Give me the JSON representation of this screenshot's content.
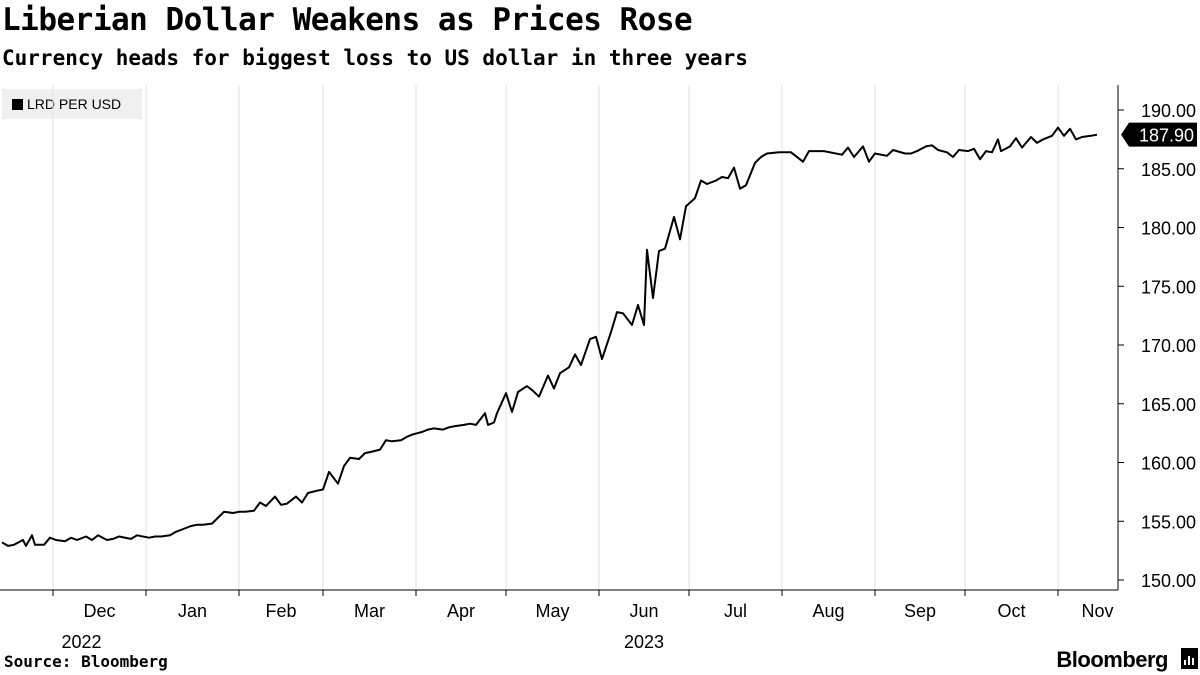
{
  "header": {
    "title": "Liberian Dollar Weakens as Prices Rose",
    "subtitle": "Currency heads for biggest loss to US dollar in three years"
  },
  "footer": {
    "source": "Source: Bloomberg",
    "brand": "Bloomberg"
  },
  "chart_data": {
    "type": "line",
    "legend_position": "top-left",
    "grid": "vertical",
    "ylim": [
      150,
      190
    ],
    "y_axis_side": "right",
    "y_ticks": [
      "150.00",
      "155.00",
      "160.00",
      "165.00",
      "170.00",
      "175.00",
      "180.00",
      "185.00",
      "190.00"
    ],
    "x_ticks": [
      "Dec",
      "Jan",
      "Feb",
      "Mar",
      "Apr",
      "May",
      "Jun",
      "Jul",
      "Aug",
      "Sep",
      "Oct",
      "Nov"
    ],
    "x_years": [
      "2022",
      "2023"
    ],
    "last_value_label": "187.90",
    "series": [
      {
        "name": "LRD PER USD",
        "color": "#000000",
        "points": [
          [
            "2022-11-14",
            153.2
          ],
          [
            "2022-11-16",
            152.9
          ],
          [
            "2022-11-18",
            153.0
          ],
          [
            "2022-11-21",
            153.4
          ],
          [
            "2022-11-22",
            152.9
          ],
          [
            "2022-11-24",
            153.8
          ],
          [
            "2022-11-25",
            153.0
          ],
          [
            "2022-11-28",
            153.0
          ],
          [
            "2022-11-30",
            153.6
          ],
          [
            "2022-12-02",
            153.4
          ],
          [
            "2022-12-05",
            153.3
          ],
          [
            "2022-12-07",
            153.6
          ],
          [
            "2022-12-09",
            153.4
          ],
          [
            "2022-12-12",
            153.7
          ],
          [
            "2022-12-14",
            153.4
          ],
          [
            "2022-12-16",
            153.8
          ],
          [
            "2022-12-19",
            153.4
          ],
          [
            "2022-12-21",
            153.5
          ],
          [
            "2022-12-23",
            153.7
          ],
          [
            "2022-12-27",
            153.5
          ],
          [
            "2022-12-29",
            153.8
          ],
          [
            "2023-01-02",
            153.6
          ],
          [
            "2023-01-04",
            153.7
          ],
          [
            "2023-01-06",
            153.7
          ],
          [
            "2023-01-09",
            153.8
          ],
          [
            "2023-01-11",
            154.1
          ],
          [
            "2023-01-13",
            154.3
          ],
          [
            "2023-01-16",
            154.6
          ],
          [
            "2023-01-18",
            154.7
          ],
          [
            "2023-01-20",
            154.7
          ],
          [
            "2023-01-23",
            154.8
          ],
          [
            "2023-01-25",
            155.3
          ],
          [
            "2023-01-27",
            155.8
          ],
          [
            "2023-01-30",
            155.7
          ],
          [
            "2023-02-01",
            155.8
          ],
          [
            "2023-02-03",
            155.8
          ],
          [
            "2023-02-06",
            155.9
          ],
          [
            "2023-02-08",
            156.6
          ],
          [
            "2023-02-10",
            156.3
          ],
          [
            "2023-02-13",
            157.1
          ],
          [
            "2023-02-15",
            156.4
          ],
          [
            "2023-02-17",
            156.5
          ],
          [
            "2023-02-20",
            157.1
          ],
          [
            "2023-02-22",
            156.6
          ],
          [
            "2023-02-24",
            157.4
          ],
          [
            "2023-02-27",
            157.6
          ],
          [
            "2023-03-01",
            157.7
          ],
          [
            "2023-03-03",
            159.2
          ],
          [
            "2023-03-06",
            158.2
          ],
          [
            "2023-03-08",
            159.7
          ],
          [
            "2023-03-10",
            160.4
          ],
          [
            "2023-03-13",
            160.3
          ],
          [
            "2023-03-15",
            160.8
          ],
          [
            "2023-03-17",
            160.9
          ],
          [
            "2023-03-20",
            161.1
          ],
          [
            "2023-03-22",
            161.9
          ],
          [
            "2023-03-24",
            161.8
          ],
          [
            "2023-03-27",
            161.9
          ],
          [
            "2023-03-29",
            162.2
          ],
          [
            "2023-03-31",
            162.4
          ],
          [
            "2023-04-03",
            162.6
          ],
          [
            "2023-04-05",
            162.8
          ],
          [
            "2023-04-07",
            162.9
          ],
          [
            "2023-04-10",
            162.8
          ],
          [
            "2023-04-12",
            163.0
          ],
          [
            "2023-04-14",
            163.1
          ],
          [
            "2023-04-17",
            163.2
          ],
          [
            "2023-04-19",
            163.3
          ],
          [
            "2023-04-21",
            163.2
          ],
          [
            "2023-04-24",
            164.2
          ],
          [
            "2023-04-25",
            163.2
          ],
          [
            "2023-04-27",
            163.4
          ],
          [
            "2023-04-28",
            164.2
          ],
          [
            "2023-05-01",
            165.9
          ],
          [
            "2023-05-03",
            164.3
          ],
          [
            "2023-05-05",
            166.0
          ],
          [
            "2023-05-08",
            166.5
          ],
          [
            "2023-05-10",
            166.1
          ],
          [
            "2023-05-12",
            165.6
          ],
          [
            "2023-05-15",
            167.4
          ],
          [
            "2023-05-17",
            166.3
          ],
          [
            "2023-05-19",
            167.6
          ],
          [
            "2023-05-22",
            168.1
          ],
          [
            "2023-05-24",
            169.2
          ],
          [
            "2023-05-26",
            168.3
          ],
          [
            "2023-05-29",
            170.5
          ],
          [
            "2023-05-31",
            170.7
          ],
          [
            "2023-06-02",
            168.8
          ],
          [
            "2023-06-05",
            171.1
          ],
          [
            "2023-06-07",
            172.8
          ],
          [
            "2023-06-09",
            172.7
          ],
          [
            "2023-06-12",
            171.7
          ],
          [
            "2023-06-14",
            173.4
          ],
          [
            "2023-06-16",
            171.7
          ],
          [
            "2023-06-17",
            178.1
          ],
          [
            "2023-06-19",
            174.0
          ],
          [
            "2023-06-21",
            178.0
          ],
          [
            "2023-06-23",
            178.2
          ],
          [
            "2023-06-26",
            180.9
          ],
          [
            "2023-06-28",
            179.0
          ],
          [
            "2023-06-30",
            181.8
          ],
          [
            "2023-07-03",
            182.5
          ],
          [
            "2023-07-05",
            184.0
          ],
          [
            "2023-07-07",
            183.7
          ],
          [
            "2023-07-10",
            184.0
          ],
          [
            "2023-07-12",
            184.3
          ],
          [
            "2023-07-14",
            184.2
          ],
          [
            "2023-07-16",
            185.1
          ],
          [
            "2023-07-18",
            183.3
          ],
          [
            "2023-07-20",
            183.6
          ],
          [
            "2023-07-23",
            185.5
          ],
          [
            "2023-07-25",
            186.0
          ],
          [
            "2023-07-27",
            186.3
          ],
          [
            "2023-07-31",
            186.4
          ],
          [
            "2023-08-04",
            186.4
          ],
          [
            "2023-08-08",
            185.6
          ],
          [
            "2023-08-10",
            186.5
          ],
          [
            "2023-08-15",
            186.5
          ],
          [
            "2023-08-21",
            186.2
          ],
          [
            "2023-08-23",
            186.8
          ],
          [
            "2023-08-25",
            186.0
          ],
          [
            "2023-08-28",
            186.9
          ],
          [
            "2023-08-30",
            185.6
          ],
          [
            "2023-09-01",
            186.3
          ],
          [
            "2023-09-05",
            186.1
          ],
          [
            "2023-09-07",
            186.6
          ],
          [
            "2023-09-11",
            186.3
          ],
          [
            "2023-09-13",
            186.3
          ],
          [
            "2023-09-15",
            186.5
          ],
          [
            "2023-09-18",
            186.9
          ],
          [
            "2023-09-20",
            187.0
          ],
          [
            "2023-09-22",
            186.6
          ],
          [
            "2023-09-25",
            186.4
          ],
          [
            "2023-09-27",
            186.0
          ],
          [
            "2023-09-29",
            186.6
          ],
          [
            "2023-10-02",
            186.5
          ],
          [
            "2023-10-04",
            186.7
          ],
          [
            "2023-10-06",
            185.8
          ],
          [
            "2023-10-08",
            186.5
          ],
          [
            "2023-10-10",
            186.4
          ],
          [
            "2023-10-12",
            187.5
          ],
          [
            "2023-10-13",
            186.5
          ],
          [
            "2023-10-16",
            186.9
          ],
          [
            "2023-10-18",
            187.6
          ],
          [
            "2023-10-20",
            186.8
          ],
          [
            "2023-10-23",
            187.7
          ],
          [
            "2023-10-25",
            187.2
          ],
          [
            "2023-10-27",
            187.5
          ],
          [
            "2023-10-30",
            187.8
          ],
          [
            "2023-11-01",
            188.5
          ],
          [
            "2023-11-03",
            187.8
          ],
          [
            "2023-11-05",
            188.4
          ],
          [
            "2023-11-07",
            187.5
          ],
          [
            "2023-11-09",
            187.7
          ],
          [
            "2023-11-12",
            187.8
          ],
          [
            "2023-11-14",
            187.9
          ]
        ]
      }
    ]
  }
}
